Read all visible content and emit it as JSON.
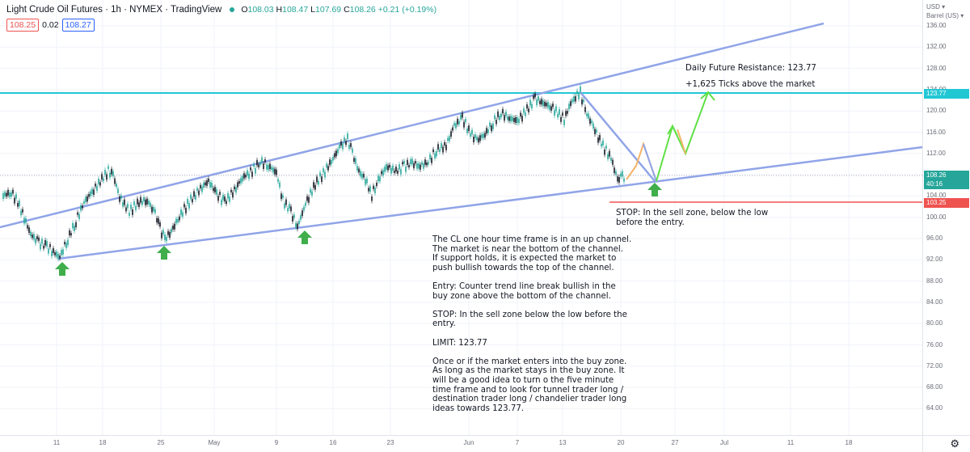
{
  "header": {
    "symbol_title": "Light Crude Oil Futures · 1h · NYMEX · TradingView",
    "ohlc": {
      "o_label": "O",
      "o": "108.03",
      "h_label": "H",
      "h": "108.47",
      "l_label": "L",
      "l": "107.69",
      "c_label": "C",
      "c": "108.26",
      "change": "+0.21 (+0.19%)"
    },
    "sell_price": "108.25",
    "spread": "0.02",
    "buy_price": "108.27"
  },
  "yaxis": {
    "currency": "USD ▾",
    "unit": "Barrel (US) ▾",
    "ticks": [
      "136.00",
      "132.00",
      "128.00",
      "124.00",
      "120.00",
      "116.00",
      "112.00",
      "108.00",
      "104.00",
      "100.00",
      "96.00",
      "92.00",
      "88.00",
      "84.00",
      "80.00",
      "76.00",
      "72.00",
      "68.00",
      "64.00"
    ],
    "resistance_tag": "123.77",
    "price_tag": "108.26",
    "countdown_tag": "40:16",
    "stop_tag": "103.25"
  },
  "xaxis": {
    "ticks": [
      "11",
      "18",
      "25",
      "May",
      "9",
      "16",
      "23",
      "Jun",
      "7",
      "13",
      "20",
      "27",
      "Jul",
      "11",
      "18"
    ]
  },
  "annotations": {
    "resistance_title": "Daily Future Resistance: 123.77",
    "resistance_ticks": "+1,625 Ticks above the market",
    "stop_short": "STOP: In the sell zone, below the low\nbefore the entry.",
    "analysis": "The CL one hour time frame is in an up channel.\nThe market is near the bottom of the channel.\nIf support holds, it is expected the market to\npush bullish towards the top of the channel.\n\nEntry: Counter trend line break bullish in the\nbuy zone above the bottom of the channel.\n\nSTOP: In the sell zone below the low before the\nentry.\n\nLIMIT: 123.77\n\nOnce or if the market enters into the buy zone.\nAs long as the market stays in the buy zone. It\nwill be a good idea to turn o the five minute\ntime frame and to look for tunnel trader long /\ndestination trader long / chandelier trader long\nideas towards 123.77."
  },
  "colors": {
    "up": "#26a69a",
    "down": "#131722",
    "channel": "#90a4e8",
    "resistance": "#22c7d4",
    "stop": "#ef5350",
    "arrow": "#3fae4b",
    "projection_orange": "#f5b46a",
    "projection_green": "#5fe046",
    "countdown_bg": "#22c7d4"
  },
  "icons": {
    "settings": "gear-icon",
    "up_arrows": "arrow-up-icon"
  }
}
